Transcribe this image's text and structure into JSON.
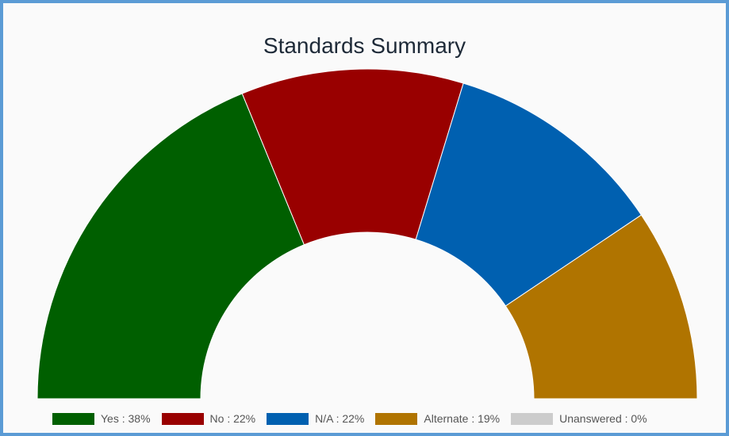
{
  "chart_data": {
    "type": "pie",
    "variant": "semicircle-doughnut",
    "title": "Standards Summary",
    "series": [
      {
        "name": "Yes",
        "value": 38,
        "color": "#005f00",
        "legend_label": "Yes : 38%"
      },
      {
        "name": "No",
        "value": 22,
        "color": "#990000",
        "legend_label": "No : 22%"
      },
      {
        "name": "N/A",
        "value": 22,
        "color": "#0060b0",
        "legend_label": "N/A : 22%"
      },
      {
        "name": "Alternate",
        "value": 19,
        "color": "#b07400",
        "legend_label": "Alternate : 19%"
      },
      {
        "name": "Unanswered",
        "value": 0,
        "color": "#cccccc",
        "legend_label": "Unanswered : 0%"
      }
    ],
    "legend_position": "bottom"
  }
}
